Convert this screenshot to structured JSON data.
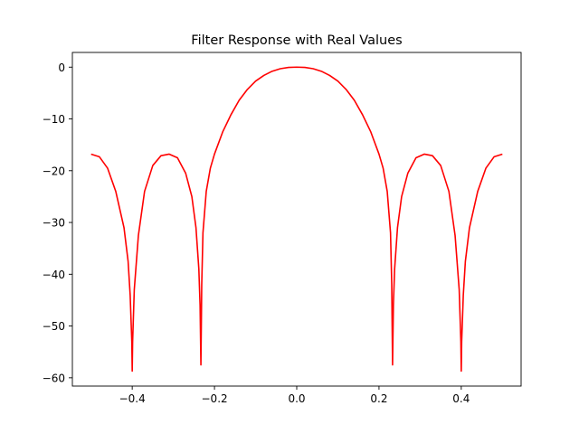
{
  "chart_data": {
    "type": "line",
    "title": "Filter Response with Real Values",
    "xlabel": "",
    "ylabel": "",
    "xlim": [
      -0.5455,
      0.5455
    ],
    "ylim": [
      -61.6,
      2.84
    ],
    "xticks": [
      -0.4,
      -0.2,
      0.0,
      0.2,
      0.4
    ],
    "xtick_labels": [
      "−0.4",
      "−0.2",
      "0.0",
      "0.2",
      "0.4"
    ],
    "yticks": [
      0,
      -10,
      -20,
      -30,
      -40,
      -50,
      -60
    ],
    "ytick_labels": [
      "0",
      "−10",
      "−20",
      "−30",
      "−40",
      "−50",
      "−60"
    ],
    "grid": false,
    "series": [
      {
        "color": "#ff0000",
        "x": [
          -0.5,
          -0.48,
          -0.46,
          -0.44,
          -0.42,
          -0.41,
          -0.405,
          -0.401,
          -0.4,
          -0.399,
          -0.395,
          -0.385,
          -0.37,
          -0.35,
          -0.33,
          -0.31,
          -0.29,
          -0.27,
          -0.255,
          -0.245,
          -0.238,
          -0.235,
          -0.233,
          -0.232,
          -0.231,
          -0.228,
          -0.22,
          -0.21,
          -0.2,
          -0.18,
          -0.16,
          -0.14,
          -0.12,
          -0.1,
          -0.08,
          -0.06,
          -0.04,
          -0.02,
          0.0,
          0.02,
          0.04,
          0.06,
          0.08,
          0.1,
          0.12,
          0.14,
          0.16,
          0.18,
          0.2,
          0.21,
          0.22,
          0.228,
          0.231,
          0.232,
          0.233,
          0.235,
          0.238,
          0.245,
          0.255,
          0.27,
          0.29,
          0.31,
          0.33,
          0.35,
          0.37,
          0.385,
          0.395,
          0.399,
          0.4,
          0.401,
          0.405,
          0.41,
          0.42,
          0.44,
          0.46,
          0.48,
          0.5
        ],
        "y": [
          -16.8,
          -17.3,
          -19.5,
          -24.0,
          -31.0,
          -37.5,
          -44.0,
          -53.0,
          -58.7,
          -53.0,
          -43.0,
          -32.5,
          -24.0,
          -19.0,
          -17.1,
          -16.8,
          -17.5,
          -20.5,
          -25.0,
          -31.0,
          -39.0,
          -46.0,
          -57.5,
          -50.0,
          -42.0,
          -32.0,
          -24.0,
          -19.5,
          -16.8,
          -12.5,
          -9.2,
          -6.4,
          -4.3,
          -2.7,
          -1.6,
          -0.8,
          -0.3,
          -0.05,
          0.0,
          -0.05,
          -0.3,
          -0.8,
          -1.6,
          -2.7,
          -4.3,
          -6.4,
          -9.2,
          -12.5,
          -16.8,
          -19.5,
          -24.0,
          -32.0,
          -42.0,
          -50.0,
          -57.5,
          -46.0,
          -39.0,
          -31.0,
          -25.0,
          -20.5,
          -17.5,
          -16.8,
          -17.1,
          -19.0,
          -24.0,
          -32.5,
          -43.0,
          -53.0,
          -58.7,
          -53.0,
          -44.0,
          -37.5,
          -31.0,
          -24.0,
          -19.5,
          -17.3,
          -16.8
        ]
      }
    ]
  }
}
